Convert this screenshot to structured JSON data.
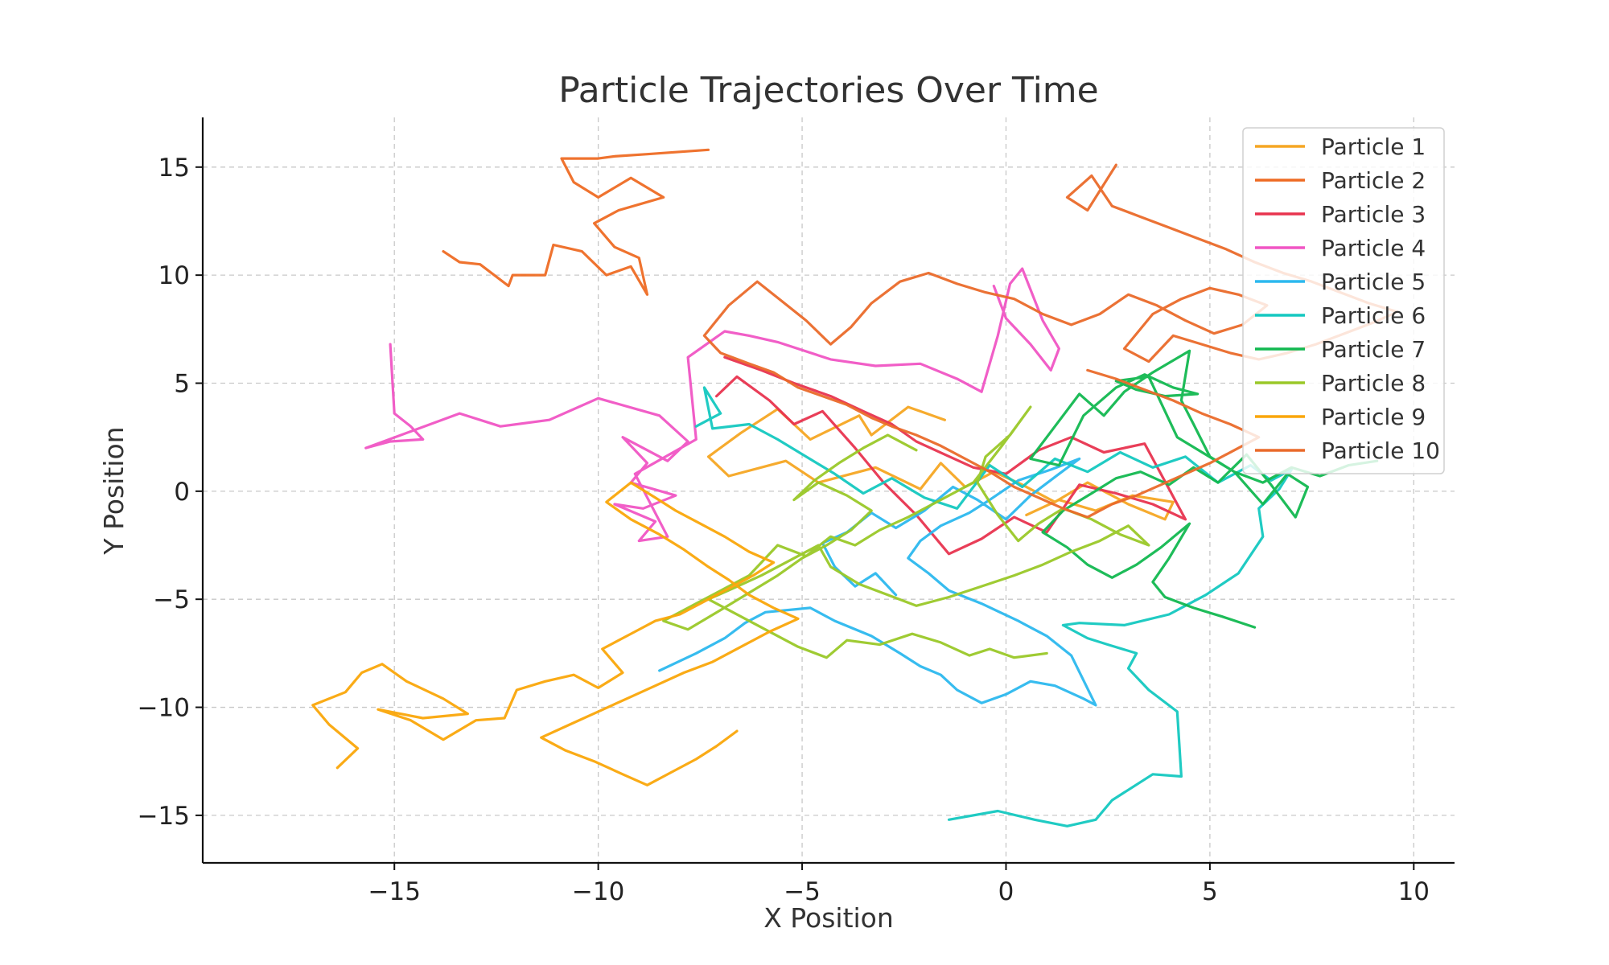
{
  "chart_data": {
    "type": "line",
    "title": "Particle Trajectories Over Time",
    "xlabel": "X Position",
    "ylabel": "Y Position",
    "xlim": [
      -19.7,
      11
    ],
    "ylim": [
      -17.2,
      17.3
    ],
    "xticks": [
      -15,
      -10,
      -5,
      0,
      5,
      10
    ],
    "yticks": [
      -15,
      -10,
      -5,
      0,
      5,
      10,
      15
    ],
    "xtick_labels": [
      "−15",
      "−10",
      "−5",
      "0",
      "5",
      "10"
    ],
    "ytick_labels": [
      "−15",
      "−10",
      "−5",
      "0",
      "5",
      "10",
      "15"
    ],
    "grid": true,
    "legend_position": "top-right",
    "series": [
      {
        "name": "Particle 1",
        "color": "#F5A623",
        "x": [
          -1.5,
          -2.4,
          -3.3,
          -3.6,
          -4.8,
          -5.6,
          -6.5,
          -7.3,
          -6.8,
          -5.4,
          -4.6,
          -3.2,
          -2.1,
          -1.6,
          -1.0,
          -0.3,
          0.4,
          1.2,
          2.0,
          3.0,
          3.9,
          4.1,
          3.1,
          2.2,
          1.3,
          0.5
        ],
        "y": [
          3.3,
          3.9,
          2.6,
          3.5,
          2.4,
          3.8,
          2.7,
          1.6,
          0.7,
          1.4,
          0.4,
          1.1,
          0.1,
          1.3,
          0.2,
          0.9,
          0.3,
          -0.5,
          0.4,
          -0.6,
          -1.3,
          -0.5,
          -0.2,
          -0.9,
          -0.4,
          -1.1
        ]
      },
      {
        "name": "Particle 2",
        "color": "#EE6B24",
        "x": [
          -7.3,
          -8.8,
          -9.6,
          -10.0,
          -10.9,
          -10.6,
          -10.0,
          -9.2,
          -8.4,
          -9.5,
          -10.1,
          -9.6,
          -9.0,
          -8.8,
          -9.2,
          -9.8,
          -10.4,
          -11.1,
          -11.3,
          -12.1,
          -12.2,
          -12.9,
          -13.4,
          -13.8
        ],
        "y": [
          15.8,
          15.6,
          15.5,
          15.4,
          15.4,
          14.3,
          13.6,
          14.5,
          13.6,
          13.0,
          12.4,
          11.3,
          10.8,
          9.1,
          10.4,
          10.0,
          11.1,
          11.4,
          10.0,
          10.0,
          9.5,
          10.5,
          10.6,
          11.1
        ]
      },
      {
        "name": "Particle 3",
        "color": "#E8344F",
        "x": [
          -6.9,
          -6.0,
          -5.2,
          -4.3,
          -3.5,
          -2.8,
          -2.2,
          -1.5,
          -0.8,
          0.0,
          0.8,
          1.6,
          2.4,
          3.4,
          4.4,
          3.6,
          2.7,
          1.8,
          1.0,
          0.2,
          -0.6,
          -1.4,
          -2.2,
          -3.0,
          -3.7,
          -4.5,
          -5.2,
          -5.8,
          -6.6,
          -7.1
        ],
        "y": [
          6.2,
          5.6,
          5.0,
          4.4,
          3.7,
          3.1,
          2.3,
          1.7,
          1.1,
          0.8,
          1.9,
          2.5,
          1.8,
          2.2,
          -1.3,
          -0.6,
          -0.1,
          0.3,
          -1.9,
          -1.2,
          -2.2,
          -2.9,
          -1.1,
          0.4,
          2.0,
          3.7,
          3.1,
          4.2,
          5.3,
          4.4
        ]
      },
      {
        "name": "Particle 4",
        "color": "#F055C4",
        "x": [
          -15.1,
          -15.0,
          -14.6,
          -14.3,
          -15.1,
          -15.7,
          -13.4,
          -12.4,
          -11.2,
          -10.0,
          -8.5,
          -7.8,
          -8.3,
          -9.4,
          -8.8,
          -9.2,
          -8.1,
          -8.9,
          -9.6,
          -8.6,
          -9.0,
          -8.3,
          -9.1,
          -7.6,
          -7.8,
          -6.9,
          -6.3,
          -5.6,
          -4.3,
          -3.2,
          -2.1,
          -1.2,
          -0.6,
          -0.2,
          0.1,
          0.4,
          0.9,
          1.3,
          1.1,
          0.6,
          0.0,
          -0.3
        ],
        "y": [
          6.8,
          3.6,
          3.0,
          2.4,
          2.3,
          2.0,
          3.6,
          3.0,
          3.3,
          4.3,
          3.5,
          2.3,
          1.4,
          2.5,
          1.3,
          0.4,
          -0.2,
          -0.8,
          -0.6,
          -1.4,
          -2.3,
          -2.1,
          0.8,
          2.4,
          6.2,
          7.4,
          7.2,
          6.9,
          6.1,
          5.8,
          5.9,
          5.2,
          4.6,
          7.2,
          9.6,
          10.3,
          7.9,
          6.6,
          5.6,
          6.8,
          8.0,
          9.5
        ]
      },
      {
        "name": "Particle 5",
        "color": "#2CB8EE",
        "x": [
          -8.5,
          -7.6,
          -6.9,
          -6.4,
          -5.9,
          -4.8,
          -4.2,
          -3.3,
          -2.6,
          -2.1,
          -1.6,
          -1.2,
          -0.6,
          0.0,
          0.6,
          1.2,
          1.9,
          2.2,
          1.6,
          1.0,
          0.3,
          -0.6,
          -1.4,
          -1.9,
          -2.4,
          -2.1,
          -1.6,
          -0.9,
          -0.4,
          0.3,
          1.1,
          1.8,
          1.3,
          0.6,
          0.0,
          -0.7,
          -1.3,
          -2.0,
          -2.7,
          -3.3,
          -3.9,
          -4.5,
          -4.2,
          -3.7,
          -3.2,
          -2.7
        ],
        "y": [
          -8.3,
          -7.5,
          -6.8,
          -6.1,
          -5.6,
          -5.4,
          -6.0,
          -6.7,
          -7.5,
          -8.1,
          -8.5,
          -9.2,
          -9.8,
          -9.4,
          -8.8,
          -9.0,
          -9.6,
          -9.9,
          -7.6,
          -6.7,
          -6.0,
          -5.2,
          -4.6,
          -3.8,
          -3.1,
          -2.3,
          -1.6,
          -1.0,
          -0.4,
          0.5,
          1.0,
          1.5,
          0.8,
          -0.2,
          -1.3,
          -0.4,
          0.2,
          -0.9,
          -1.7,
          -1.0,
          -1.9,
          -2.4,
          -3.5,
          -4.4,
          -3.8,
          -4.8
        ]
      },
      {
        "name": "Particle 6",
        "color": "#14C8C0",
        "x": [
          -1.4,
          -0.2,
          0.7,
          1.5,
          2.2,
          2.6,
          3.6,
          4.3,
          4.2,
          3.5,
          3.0,
          3.2,
          2.5,
          2.0,
          1.4,
          1.8,
          2.9,
          4.0,
          4.9,
          5.7,
          6.3,
          6.2,
          6.7,
          7.0,
          6.5,
          6.0,
          5.2,
          4.4,
          3.6,
          2.8,
          2.0,
          1.2,
          0.4,
          -0.4,
          -1.2,
          -2.0,
          -2.8,
          -3.5,
          -4.2,
          -4.9,
          -5.6,
          -6.3,
          -7.2,
          -7.4,
          -7.0,
          -7.6
        ],
        "y": [
          -15.2,
          -14.8,
          -15.2,
          -15.5,
          -15.2,
          -14.3,
          -13.1,
          -13.2,
          -10.2,
          -9.2,
          -8.2,
          -7.5,
          -7.1,
          -6.8,
          -6.2,
          -6.1,
          -6.2,
          -5.7,
          -4.8,
          -3.8,
          -2.1,
          -0.8,
          0.1,
          1.0,
          0.5,
          1.2,
          0.4,
          1.6,
          1.1,
          1.8,
          0.9,
          1.5,
          0.2,
          1.2,
          -0.8,
          -0.3,
          0.6,
          -0.1,
          0.8,
          1.6,
          2.4,
          3.1,
          2.9,
          4.8,
          3.6,
          3.0
        ]
      },
      {
        "name": "Particle 7",
        "color": "#12B850",
        "x": [
          6.1,
          5.3,
          4.6,
          3.9,
          3.6,
          4.0,
          4.5,
          3.8,
          3.2,
          2.6,
          2.0,
          1.5,
          0.9,
          1.4,
          2.1,
          2.7,
          3.3,
          4.0,
          4.6,
          5.2,
          5.9,
          6.5,
          7.1,
          7.4,
          6.9,
          6.3,
          5.6,
          5.0,
          4.6,
          4.3,
          4.5,
          3.6,
          2.9,
          2.4,
          1.8,
          1.2,
          0.6,
          1.3,
          1.9,
          2.7,
          3.4,
          4.1,
          4.7,
          3.9,
          3.2,
          2.7,
          3.5,
          4.2,
          4.9,
          5.6,
          6.3,
          7.0,
          7.7,
          8.4,
          9.1
        ],
        "y": [
          -6.3,
          -5.8,
          -5.4,
          -4.9,
          -4.2,
          -3.1,
          -1.5,
          -2.6,
          -3.4,
          -4.0,
          -3.4,
          -2.6,
          -1.9,
          -0.9,
          -0.1,
          0.6,
          0.9,
          0.3,
          1.1,
          0.4,
          1.7,
          0.3,
          -1.2,
          0.2,
          0.8,
          -0.6,
          0.9,
          1.6,
          3.1,
          4.2,
          6.5,
          5.5,
          4.6,
          3.5,
          4.5,
          3.0,
          1.5,
          1.2,
          3.5,
          4.8,
          5.4,
          4.8,
          4.5,
          4.4,
          4.7,
          5.1,
          5.3,
          2.5,
          1.7,
          0.9,
          0.4,
          1.1,
          0.7,
          1.2,
          1.4
        ]
      },
      {
        "name": "Particle 8",
        "color": "#9AC828",
        "x": [
          1.0,
          0.2,
          -0.4,
          -0.9,
          -1.6,
          -2.3,
          -3.1,
          -3.9,
          -4.4,
          -5.1,
          -5.9,
          -6.7,
          -7.3,
          -6.7,
          -6.0,
          -5.3,
          -4.6,
          -4.3,
          -3.6,
          -2.9,
          -2.2,
          -1.4,
          -0.6,
          0.2,
          0.9,
          1.6,
          2.3,
          3.0,
          3.5,
          2.8,
          2.1,
          1.4,
          0.8,
          0.3,
          -0.2,
          -0.7,
          -0.5,
          0.1,
          0.6,
          -0.1,
          -0.8,
          -1.6,
          -2.4,
          -3.1,
          -3.7,
          -4.3,
          -4.9,
          -5.6,
          -6.3,
          -6.9,
          -7.6,
          -8.4,
          -7.8,
          -7.0,
          -6.3,
          -5.6,
          -5.0,
          -4.4,
          -3.8,
          -3.3,
          -3.9,
          -4.6,
          -5.2,
          -4.7,
          -4.1,
          -3.5,
          -2.9,
          -2.2
        ],
        "y": [
          -7.5,
          -7.7,
          -7.3,
          -7.6,
          -7.0,
          -6.6,
          -7.1,
          -6.9,
          -7.7,
          -7.2,
          -6.4,
          -5.6,
          -5.0,
          -4.5,
          -3.9,
          -3.2,
          -2.5,
          -3.5,
          -4.3,
          -4.8,
          -5.3,
          -4.9,
          -4.4,
          -3.9,
          -3.4,
          -2.8,
          -2.3,
          -1.6,
          -2.5,
          -2.0,
          -1.3,
          -0.8,
          -1.5,
          -2.3,
          -1.1,
          0.4,
          1.6,
          2.6,
          3.9,
          2.1,
          0.4,
          -0.4,
          -1.2,
          -1.8,
          -2.5,
          -2.1,
          -3.0,
          -2.5,
          -3.9,
          -4.5,
          -5.2,
          -6.0,
          -6.4,
          -5.5,
          -4.7,
          -3.9,
          -3.1,
          -2.5,
          -1.8,
          -0.9,
          -0.2,
          0.4,
          -0.4,
          0.5,
          1.3,
          2.0,
          2.6,
          1.9
        ]
      },
      {
        "name": "Particle 9",
        "color": "#FAA60A",
        "x": [
          -16.4,
          -15.9,
          -16.6,
          -17.0,
          -16.2,
          -15.8,
          -15.3,
          -14.7,
          -13.8,
          -13.2,
          -14.3,
          -15.4,
          -14.6,
          -13.8,
          -13.0,
          -12.3,
          -12.0,
          -11.3,
          -10.6,
          -10.0,
          -9.4,
          -9.9,
          -9.1,
          -8.6,
          -8.0,
          -7.4,
          -6.8,
          -6.2,
          -5.7,
          -6.3,
          -6.9,
          -7.5,
          -8.1,
          -8.6,
          -9.2,
          -9.8,
          -9.2,
          -8.5,
          -7.9,
          -7.3,
          -6.8,
          -6.3,
          -5.7,
          -5.1,
          -5.8,
          -6.5,
          -7.2,
          -7.9,
          -8.6,
          -9.3,
          -10.0,
          -10.7,
          -11.4,
          -10.8,
          -10.1,
          -9.4,
          -8.8,
          -8.2,
          -7.6,
          -7.1,
          -6.6
        ],
        "y": [
          -12.8,
          -11.9,
          -10.8,
          -9.9,
          -9.3,
          -8.4,
          -8.0,
          -8.8,
          -9.6,
          -10.3,
          -10.5,
          -10.1,
          -10.6,
          -11.5,
          -10.6,
          -10.5,
          -9.2,
          -8.8,
          -8.5,
          -9.1,
          -8.4,
          -7.3,
          -6.5,
          -6.0,
          -5.7,
          -5.1,
          -4.5,
          -3.9,
          -3.3,
          -2.8,
          -2.1,
          -1.5,
          -0.9,
          -0.3,
          0.4,
          -0.5,
          -1.3,
          -2.0,
          -2.7,
          -3.5,
          -4.1,
          -4.8,
          -5.4,
          -5.9,
          -6.5,
          -7.2,
          -7.9,
          -8.4,
          -9.0,
          -9.6,
          -10.2,
          -10.8,
          -11.4,
          -12.0,
          -12.5,
          -13.1,
          -13.6,
          -13.0,
          -12.4,
          -11.8,
          -11.1
        ]
      },
      {
        "name": "Particle 10",
        "color": "#EA6A2A",
        "x": [
          2.7,
          2.0,
          1.5,
          2.1,
          2.6,
          3.3,
          4.0,
          4.7,
          5.4,
          6.1,
          6.8,
          7.5,
          8.2,
          8.9,
          9.6,
          9.0,
          8.3,
          7.6,
          6.9,
          6.2,
          5.5,
          4.8,
          4.1,
          3.5,
          2.9,
          3.6,
          4.3,
          5.0,
          5.7,
          6.4,
          5.8,
          5.1,
          4.4,
          3.7,
          3.0,
          2.3,
          1.6,
          0.9,
          0.2,
          -0.5,
          -1.2,
          -1.9,
          -2.6,
          -3.3,
          -3.8,
          -4.3,
          -4.9,
          -5.5,
          -6.1,
          -6.8,
          -7.4,
          -7.0,
          -6.3,
          -5.7,
          -5.1,
          -4.5,
          -3.9,
          -3.3,
          -2.8,
          -2.2,
          -1.6,
          -1.0,
          -0.4,
          0.2,
          0.8,
          1.4,
          2.0,
          2.6,
          3.2,
          3.8,
          4.4,
          5.0,
          5.6,
          6.2,
          5.5,
          4.8,
          4.1,
          3.4,
          2.7,
          2.0
        ],
        "y": [
          15.1,
          13.0,
          13.6,
          14.6,
          13.2,
          12.7,
          12.2,
          11.7,
          11.2,
          10.6,
          10.1,
          9.7,
          9.2,
          8.7,
          8.3,
          7.8,
          7.3,
          6.8,
          6.4,
          6.1,
          6.4,
          6.8,
          7.2,
          6.0,
          6.6,
          8.2,
          8.9,
          9.4,
          9.1,
          8.6,
          7.7,
          7.3,
          7.9,
          8.6,
          9.1,
          8.2,
          7.7,
          8.2,
          8.9,
          9.2,
          9.6,
          10.1,
          9.7,
          8.7,
          7.6,
          6.8,
          7.9,
          8.8,
          9.7,
          8.6,
          7.2,
          6.4,
          5.9,
          5.5,
          4.8,
          4.4,
          4.0,
          3.4,
          3.0,
          2.6,
          2.1,
          1.5,
          0.9,
          0.2,
          -0.3,
          -0.8,
          -1.2,
          -0.6,
          -0.2,
          0.3,
          0.8,
          1.3,
          1.9,
          2.5,
          3.1,
          3.6,
          4.2,
          4.7,
          5.2,
          5.6
        ]
      }
    ]
  }
}
